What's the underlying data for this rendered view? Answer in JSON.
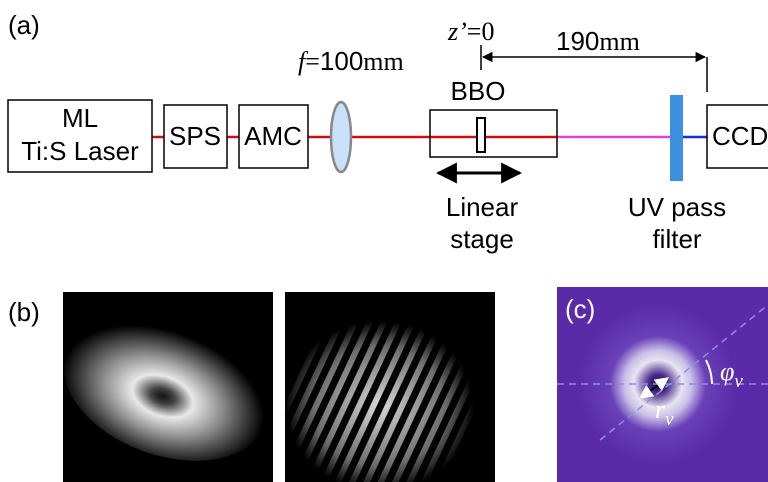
{
  "panel_a": {
    "label": "(a)",
    "focal": {
      "symbol": "f",
      "equals": "=",
      "value": "100",
      "unit": "mm"
    },
    "z_origin": {
      "symbol": "z’",
      "equals": "=0"
    },
    "distance": {
      "value": "190",
      "unit": "mm"
    },
    "components": {
      "laser": {
        "line1": "ML",
        "line2": "Ti:S Laser"
      },
      "sps": "SPS",
      "amc": "AMC",
      "bbo": "BBO",
      "ccd": "CCD"
    },
    "stage_label": {
      "line1": "Linear",
      "line2": "stage"
    },
    "filter_label": {
      "line1": "UV pass",
      "line2": "filter"
    }
  },
  "panel_b": {
    "label": "(b)"
  },
  "panel_c": {
    "label": "(c)",
    "phi": {
      "symbol": "φ",
      "subscript": "v"
    },
    "r": {
      "symbol": "r",
      "subscript": "v"
    }
  }
}
